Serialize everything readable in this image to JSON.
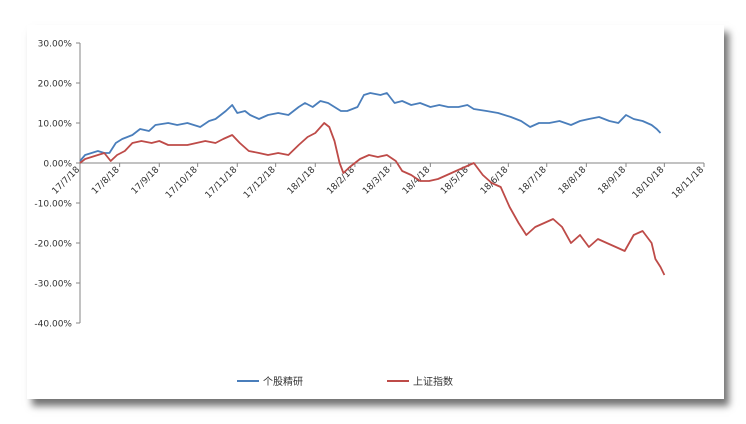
{
  "chart_data": {
    "type": "line",
    "title": "",
    "xlabel": "",
    "ylabel": "",
    "y_unit": "percent",
    "ylim": [
      -40,
      30
    ],
    "y_ticks": [
      30,
      20,
      10,
      0,
      -10,
      -20,
      -30,
      -40
    ],
    "y_tick_labels": [
      "30.00%",
      "20.00%",
      "10.00%",
      "0.00%",
      "-10.00%",
      "-20.00%",
      "-30.00%",
      "-40.00%"
    ],
    "xlim": [
      "2017-07-18",
      "2018-11-18"
    ],
    "x_ticks": [
      "2017-07-18",
      "2017-08-18",
      "2017-09-18",
      "2017-10-18",
      "2017-11-18",
      "2017-12-18",
      "2018-01-18",
      "2018-02-18",
      "2018-03-18",
      "2018-04-18",
      "2018-05-18",
      "2018-06-18",
      "2018-07-18",
      "2018-08-18",
      "2018-09-18",
      "2018-10-18",
      "2018-11-18"
    ],
    "x_tick_labels": [
      "17/7/18",
      "17/8/18",
      "17/9/18",
      "17/10/18",
      "17/11/18",
      "17/12/18",
      "18/1/18",
      "18/2/18",
      "18/3/18",
      "18/4/18",
      "18/5/18",
      "18/6/18",
      "18/7/18",
      "18/8/18",
      "18/9/18",
      "18/10/18",
      "18/11/18"
    ],
    "grid": false,
    "legend_position": "bottom",
    "series": [
      {
        "name": "个股精研",
        "color": "#4a7ebb",
        "points": [
          [
            "2017-07-18",
            0.5
          ],
          [
            "2017-07-22",
            2.0
          ],
          [
            "2017-07-27",
            2.5
          ],
          [
            "2017-08-01",
            3.0
          ],
          [
            "2017-08-06",
            2.5
          ],
          [
            "2017-08-10",
            2.5
          ],
          [
            "2017-08-15",
            5.0
          ],
          [
            "2017-08-20",
            6.0
          ],
          [
            "2017-08-28",
            7.0
          ],
          [
            "2017-09-03",
            8.5
          ],
          [
            "2017-09-10",
            8.0
          ],
          [
            "2017-09-15",
            9.5
          ],
          [
            "2017-09-25",
            10.0
          ],
          [
            "2017-10-02",
            9.5
          ],
          [
            "2017-10-10",
            10.0
          ],
          [
            "2017-10-15",
            9.5
          ],
          [
            "2017-10-20",
            9.0
          ],
          [
            "2017-10-27",
            10.5
          ],
          [
            "2017-11-01",
            11.0
          ],
          [
            "2017-11-05",
            12.0
          ],
          [
            "2017-11-09",
            13.0
          ],
          [
            "2017-11-14",
            14.5
          ],
          [
            "2017-11-18",
            12.5
          ],
          [
            "2017-11-24",
            13.0
          ],
          [
            "2017-11-28",
            12.0
          ],
          [
            "2017-12-05",
            11.0
          ],
          [
            "2017-12-12",
            12.0
          ],
          [
            "2017-12-20",
            12.5
          ],
          [
            "2017-12-28",
            12.0
          ],
          [
            "2018-01-05",
            14.0
          ],
          [
            "2018-01-10",
            15.0
          ],
          [
            "2018-01-16",
            14.0
          ],
          [
            "2018-01-22",
            15.5
          ],
          [
            "2018-01-28",
            15.0
          ],
          [
            "2018-02-02",
            14.0
          ],
          [
            "2018-02-07",
            13.0
          ],
          [
            "2018-02-12",
            13.0
          ],
          [
            "2018-02-20",
            14.0
          ],
          [
            "2018-02-25",
            17.0
          ],
          [
            "2018-03-02",
            17.5
          ],
          [
            "2018-03-10",
            17.0
          ],
          [
            "2018-03-15",
            17.5
          ],
          [
            "2018-03-21",
            15.0
          ],
          [
            "2018-03-27",
            15.5
          ],
          [
            "2018-04-03",
            14.5
          ],
          [
            "2018-04-10",
            15.0
          ],
          [
            "2018-04-18",
            14.0
          ],
          [
            "2018-04-25",
            14.5
          ],
          [
            "2018-05-02",
            14.0
          ],
          [
            "2018-05-10",
            14.0
          ],
          [
            "2018-05-17",
            14.5
          ],
          [
            "2018-05-22",
            13.5
          ],
          [
            "2018-06-01",
            13.0
          ],
          [
            "2018-06-10",
            12.5
          ],
          [
            "2018-06-20",
            11.5
          ],
          [
            "2018-06-28",
            10.5
          ],
          [
            "2018-07-05",
            9.0
          ],
          [
            "2018-07-12",
            10.0
          ],
          [
            "2018-07-20",
            10.0
          ],
          [
            "2018-07-28",
            10.5
          ],
          [
            "2018-08-06",
            9.5
          ],
          [
            "2018-08-13",
            10.5
          ],
          [
            "2018-08-20",
            11.0
          ],
          [
            "2018-08-28",
            11.5
          ],
          [
            "2018-09-05",
            10.5
          ],
          [
            "2018-09-12",
            10.0
          ],
          [
            "2018-09-18",
            12.0
          ],
          [
            "2018-09-24",
            11.0
          ],
          [
            "2018-10-01",
            10.5
          ],
          [
            "2018-10-08",
            9.5
          ],
          [
            "2018-10-12",
            8.5
          ],
          [
            "2018-10-15",
            7.5
          ]
        ]
      },
      {
        "name": "上证指数",
        "color": "#be4b48",
        "points": [
          [
            "2017-07-18",
            0.0
          ],
          [
            "2017-07-22",
            1.0
          ],
          [
            "2017-07-27",
            1.5
          ],
          [
            "2017-08-01",
            2.0
          ],
          [
            "2017-08-06",
            2.5
          ],
          [
            "2017-08-11",
            0.5
          ],
          [
            "2017-08-16",
            2.0
          ],
          [
            "2017-08-22",
            3.0
          ],
          [
            "2017-08-28",
            5.0
          ],
          [
            "2017-09-04",
            5.5
          ],
          [
            "2017-09-12",
            5.0
          ],
          [
            "2017-09-18",
            5.5
          ],
          [
            "2017-09-25",
            4.5
          ],
          [
            "2017-10-02",
            4.5
          ],
          [
            "2017-10-10",
            4.5
          ],
          [
            "2017-10-17",
            5.0
          ],
          [
            "2017-10-24",
            5.5
          ],
          [
            "2017-11-01",
            5.0
          ],
          [
            "2017-11-07",
            6.0
          ],
          [
            "2017-11-14",
            7.0
          ],
          [
            "2017-11-20",
            5.0
          ],
          [
            "2017-11-27",
            3.0
          ],
          [
            "2017-12-05",
            2.5
          ],
          [
            "2017-12-12",
            2.0
          ],
          [
            "2017-12-20",
            2.5
          ],
          [
            "2017-12-28",
            2.0
          ],
          [
            "2018-01-05",
            4.5
          ],
          [
            "2018-01-12",
            6.5
          ],
          [
            "2018-01-18",
            7.5
          ],
          [
            "2018-01-25",
            10.0
          ],
          [
            "2018-01-29",
            9.0
          ],
          [
            "2018-02-02",
            5.5
          ],
          [
            "2018-02-06",
            0.0
          ],
          [
            "2018-02-09",
            -2.5
          ],
          [
            "2018-02-14",
            -1.0
          ],
          [
            "2018-02-22",
            1.0
          ],
          [
            "2018-03-01",
            2.0
          ],
          [
            "2018-03-08",
            1.5
          ],
          [
            "2018-03-15",
            2.0
          ],
          [
            "2018-03-22",
            0.5
          ],
          [
            "2018-03-27",
            -2.0
          ],
          [
            "2018-04-03",
            -3.0
          ],
          [
            "2018-04-10",
            -4.5
          ],
          [
            "2018-04-17",
            -4.5
          ],
          [
            "2018-04-24",
            -4.0
          ],
          [
            "2018-05-01",
            -3.0
          ],
          [
            "2018-05-08",
            -2.0
          ],
          [
            "2018-05-15",
            -1.0
          ],
          [
            "2018-05-22",
            0.0
          ],
          [
            "2018-05-29",
            -3.0
          ],
          [
            "2018-06-05",
            -5.0
          ],
          [
            "2018-06-12",
            -6.0
          ],
          [
            "2018-06-19",
            -11.0
          ],
          [
            "2018-06-26",
            -15.0
          ],
          [
            "2018-07-02",
            -18.0
          ],
          [
            "2018-07-09",
            -16.0
          ],
          [
            "2018-07-16",
            -15.0
          ],
          [
            "2018-07-23",
            -14.0
          ],
          [
            "2018-07-30",
            -16.0
          ],
          [
            "2018-08-06",
            -20.0
          ],
          [
            "2018-08-13",
            -18.0
          ],
          [
            "2018-08-20",
            -21.0
          ],
          [
            "2018-08-27",
            -19.0
          ],
          [
            "2018-09-03",
            -20.0
          ],
          [
            "2018-09-10",
            -21.0
          ],
          [
            "2018-09-17",
            -22.0
          ],
          [
            "2018-09-24",
            -18.0
          ],
          [
            "2018-10-01",
            -17.0
          ],
          [
            "2018-10-08",
            -20.0
          ],
          [
            "2018-10-11",
            -24.0
          ],
          [
            "2018-10-15",
            -26.0
          ],
          [
            "2018-10-18",
            -28.0
          ]
        ]
      }
    ]
  }
}
